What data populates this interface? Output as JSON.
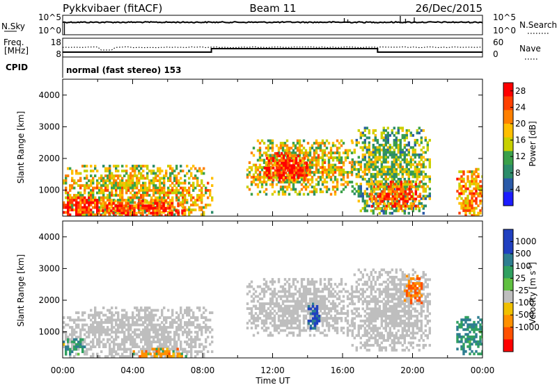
{
  "header": {
    "station": "Pykkvibaer (fitACF)",
    "beam": "Beam 11",
    "date": "26/Dec/2015"
  },
  "noise_panel": {
    "left_label": "N.Sky",
    "left_ticks": [
      "10^5",
      "10^0"
    ],
    "right_ticks": [
      "10^5",
      "10^0"
    ],
    "right_label": "N.Search"
  },
  "freq_panel": {
    "left_label_1": "Freq.",
    "left_label_2": "[MHz]",
    "left_ticks": [
      "18",
      "8"
    ],
    "right_ticks": [
      "60",
      "0"
    ],
    "right_label": "Nave"
  },
  "cpid": {
    "label": "CPID",
    "value": "normal (fast stereo) 153"
  },
  "axes": {
    "ylabel": "Slant Range [km]",
    "xlabel": "Time UT",
    "yticks": [
      "4000",
      "3000",
      "2000",
      "1000"
    ],
    "xticks": [
      "00:00",
      "04:00",
      "08:00",
      "12:00",
      "16:00",
      "20:00",
      "00:00"
    ]
  },
  "power_scale": {
    "label": "Power [dB]",
    "ticks": [
      "28",
      "24",
      "20",
      "16",
      "12",
      "8",
      "4"
    ],
    "colors": [
      "#ff0000",
      "#ff4000",
      "#ff8000",
      "#ffbf00",
      "#c8d000",
      "#3aa04a",
      "#2c8c6a",
      "#2a5aa8",
      "#1c1cff"
    ]
  },
  "velocity_scale": {
    "label_main": "Velocity [m s",
    "label_sup": "-1",
    "label_end": "]",
    "ticks": [
      "1000",
      "500",
      "100",
      "25",
      "-25",
      "-100",
      "-500",
      "-1000"
    ],
    "colors": [
      "#2040c0",
      "#2e7e90",
      "#30a060",
      "#60c040",
      "#bebebe",
      "#bebebe",
      "#f0c000",
      "#ff9000",
      "#ff5000",
      "#ff0000"
    ]
  },
  "chart_data": [
    {
      "type": "heatmap",
      "title": "Power",
      "x_unit": "hours UT",
      "y_unit": "km",
      "xlim": [
        0,
        24
      ],
      "ylim": [
        180,
        4500
      ],
      "colorbar_label": "Power [dB]",
      "colorbar_range": [
        0,
        30
      ],
      "regions": [
        {
          "x": [
            0,
            8.5
          ],
          "y": [
            180,
            1800
          ],
          "level_dB": 18
        },
        {
          "x": [
            0,
            2
          ],
          "y": [
            200,
            800
          ],
          "level_dB": 28
        },
        {
          "x": [
            2,
            7
          ],
          "y": [
            200,
            700
          ],
          "level_dB": 26
        },
        {
          "x": [
            10.5,
            16.5
          ],
          "y": [
            900,
            2600
          ],
          "level_dB": 18
        },
        {
          "x": [
            11.5,
            14
          ],
          "y": [
            1300,
            2200
          ],
          "level_dB": 28
        },
        {
          "x": [
            16.5,
            21
          ],
          "y": [
            300,
            3000
          ],
          "level_dB": 14
        },
        {
          "x": [
            17.5,
            20.5
          ],
          "y": [
            400,
            1300
          ],
          "level_dB": 24
        },
        {
          "x": [
            22.5,
            24
          ],
          "y": [
            200,
            1700
          ],
          "level_dB": 22
        }
      ]
    },
    {
      "type": "heatmap",
      "title": "Velocity",
      "x_unit": "hours UT",
      "y_unit": "km",
      "xlim": [
        0,
        24
      ],
      "ylim": [
        180,
        4500
      ],
      "colorbar_label": "Velocity [m s-1]",
      "colorbar_range": [
        -1000,
        1000
      ],
      "regions": [
        {
          "x": [
            0,
            8.5
          ],
          "y": [
            200,
            1800
          ],
          "velocity": 0
        },
        {
          "x": [
            0,
            1.2
          ],
          "y": [
            300,
            800
          ],
          "velocity": 200
        },
        {
          "x": [
            4,
            7
          ],
          "y": [
            200,
            500
          ],
          "velocity": -100
        },
        {
          "x": [
            10.5,
            16.5
          ],
          "y": [
            900,
            2700
          ],
          "velocity": 0
        },
        {
          "x": [
            14,
            14.6
          ],
          "y": [
            1100,
            2000
          ],
          "velocity": 700
        },
        {
          "x": [
            16.5,
            21
          ],
          "y": [
            400,
            3000
          ],
          "velocity": 0
        },
        {
          "x": [
            19.5,
            20.5
          ],
          "y": [
            1900,
            2800
          ],
          "velocity": -300
        },
        {
          "x": [
            22.5,
            24
          ],
          "y": [
            300,
            1500
          ],
          "velocity": 300
        }
      ]
    }
  ]
}
